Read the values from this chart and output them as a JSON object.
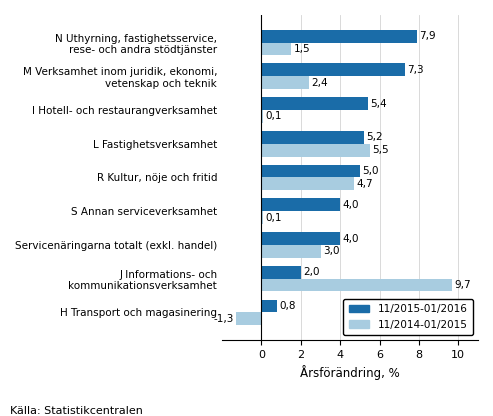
{
  "categories": [
    "H Transport och magasinering",
    "J Informations- och\nkommunikationsverksamhet",
    "Servicenäringarna totalt (exkl. handel)",
    "S Annan serviceverksamhet",
    "R Kultur, nöje och fritid",
    "L Fastighetsverksamhet",
    "I Hotell- och restaurangverksamhet",
    "M Verksamhet inom juridik, ekonomi,\nvetenskap och teknik",
    "N Uthyrning, fastighetsservice,\nrese- och andra stödtjänster"
  ],
  "values_2015_2016": [
    0.8,
    2.0,
    4.0,
    4.0,
    5.0,
    5.2,
    5.4,
    7.3,
    7.9
  ],
  "values_2014_2015": [
    -1.3,
    9.7,
    3.0,
    0.1,
    4.7,
    5.5,
    0.1,
    2.4,
    1.5
  ],
  "color_2015_2016": "#1a6ca8",
  "color_2014_2015": "#a8cce0",
  "xlabel": "Årsförändring, %",
  "legend_2015_2016": "11/2015-01/2016",
  "legend_2014_2015": "11/2014-01/2015",
  "source": "Källa: Statistikcentralen",
  "xlim": [
    -2,
    11
  ],
  "xticks": [
    0,
    2,
    4,
    6,
    8,
    10
  ]
}
